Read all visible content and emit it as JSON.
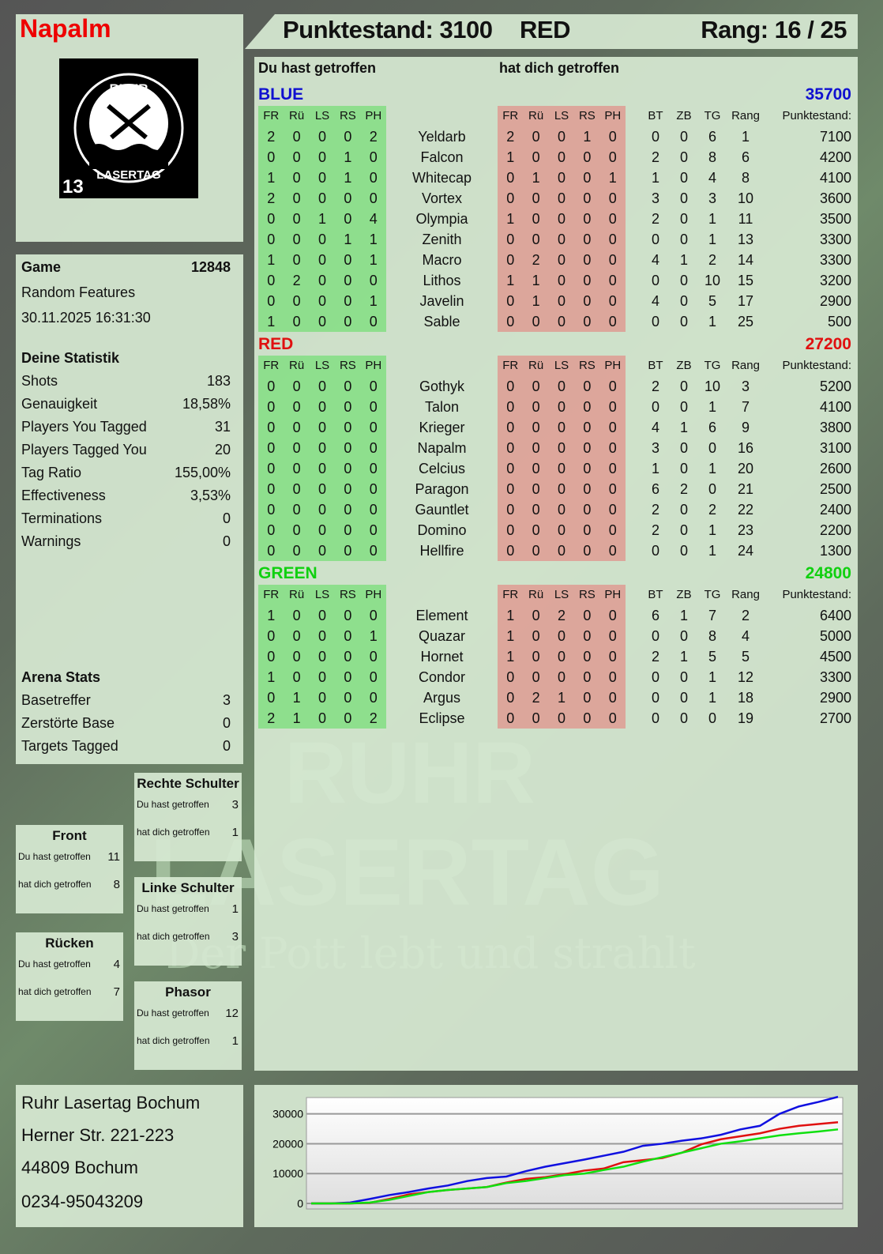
{
  "header": {
    "player_name": "Napalm",
    "score_label": "Punktestand: 3100",
    "team": "RED",
    "rank_label": "Rang: 16 / 25"
  },
  "logo": {
    "text_top": "RUHR",
    "text_bottom": "LASERTAG",
    "badge": "13"
  },
  "watermark": {
    "line1": "RUHR",
    "line2": "LASERTAG",
    "slogan": "Der Pott lebt und strahlt"
  },
  "game": {
    "label": "Game",
    "id": "12848",
    "mode": "Random Features",
    "datetime": "30.11.2025 16:31:30"
  },
  "stats": {
    "title": "Deine Statistik",
    "items": [
      {
        "label": "Shots",
        "value": "183"
      },
      {
        "label": "Genauigkeit",
        "value": "18,58%"
      },
      {
        "label": "Players You Tagged",
        "value": "31"
      },
      {
        "label": "Players Tagged You",
        "value": "20"
      },
      {
        "label": "Tag Ratio",
        "value": "155,00%"
      },
      {
        "label": "Effectiveness",
        "value": "3,53%"
      },
      {
        "label": "Terminations",
        "value": "0"
      },
      {
        "label": "Warnings",
        "value": "0"
      }
    ]
  },
  "arena": {
    "title": "Arena Stats",
    "items": [
      {
        "label": "Basetreffer",
        "value": "3"
      },
      {
        "label": "Zerstörte Base",
        "value": "0"
      },
      {
        "label": "Targets Tagged",
        "value": "0"
      }
    ]
  },
  "zones": [
    {
      "title": "Front",
      "hit_label": "Du hast getroffen",
      "hit": "11",
      "got_label": "hat dich getroffen",
      "got": "8"
    },
    {
      "title": "Rücken",
      "hit_label": "Du hast getroffen",
      "hit": "4",
      "got_label": "hat dich getroffen",
      "got": "7"
    },
    {
      "title": "Rechte Schulter",
      "hit_label": "Du hast getroffen",
      "hit": "3",
      "got_label": "hat dich getroffen",
      "got": "1"
    },
    {
      "title": "Linke Schulter",
      "hit_label": "Du hast getroffen",
      "hit": "1",
      "got_label": "hat dich getroffen",
      "got": "3"
    },
    {
      "title": "Phasor",
      "hit_label": "Du hast getroffen",
      "hit": "12",
      "got_label": "hat dich getroffen",
      "got": "1"
    }
  ],
  "main": {
    "you_hit": "Du hast getroffen",
    "hit_you": "hat dich getroffen",
    "cols_hit": [
      "FR",
      "Rü",
      "LS",
      "RS",
      "PH"
    ],
    "cols_stats": [
      "BT",
      "ZB",
      "TG",
      "Rang",
      "Punktestand:"
    ],
    "teams": [
      {
        "name": "BLUE",
        "score": "35700",
        "color": "#1010d0",
        "players": [
          [
            "Yeldarb",
            [
              2,
              0,
              0,
              0,
              2
            ],
            [
              2,
              0,
              0,
              1,
              0
            ],
            [
              0,
              0,
              6,
              1,
              7100
            ]
          ],
          [
            "Falcon",
            [
              0,
              0,
              0,
              1,
              0
            ],
            [
              1,
              0,
              0,
              0,
              0
            ],
            [
              2,
              0,
              8,
              6,
              4200
            ]
          ],
          [
            "Whitecap",
            [
              1,
              0,
              0,
              1,
              0
            ],
            [
              0,
              1,
              0,
              0,
              1
            ],
            [
              1,
              0,
              4,
              8,
              4100
            ]
          ],
          [
            "Vortex",
            [
              2,
              0,
              0,
              0,
              0
            ],
            [
              0,
              0,
              0,
              0,
              0
            ],
            [
              3,
              0,
              3,
              10,
              3600
            ]
          ],
          [
            "Olympia",
            [
              0,
              0,
              1,
              0,
              4
            ],
            [
              1,
              0,
              0,
              0,
              0
            ],
            [
              2,
              0,
              1,
              11,
              3500
            ]
          ],
          [
            "Zenith",
            [
              0,
              0,
              0,
              1,
              1
            ],
            [
              0,
              0,
              0,
              0,
              0
            ],
            [
              0,
              0,
              1,
              13,
              3300
            ]
          ],
          [
            "Macro",
            [
              1,
              0,
              0,
              0,
              1
            ],
            [
              0,
              2,
              0,
              0,
              0
            ],
            [
              4,
              1,
              2,
              14,
              3300
            ]
          ],
          [
            "Lithos",
            [
              0,
              2,
              0,
              0,
              0
            ],
            [
              1,
              1,
              0,
              0,
              0
            ],
            [
              0,
              0,
              10,
              15,
              3200
            ]
          ],
          [
            "Javelin",
            [
              0,
              0,
              0,
              0,
              1
            ],
            [
              0,
              1,
              0,
              0,
              0
            ],
            [
              4,
              0,
              5,
              17,
              2900
            ]
          ],
          [
            "Sable",
            [
              1,
              0,
              0,
              0,
              0
            ],
            [
              0,
              0,
              0,
              0,
              0
            ],
            [
              0,
              0,
              1,
              25,
              500
            ]
          ]
        ]
      },
      {
        "name": "RED",
        "score": "27200",
        "color": "#e01010",
        "players": [
          [
            "Gothyk",
            [
              0,
              0,
              0,
              0,
              0
            ],
            [
              0,
              0,
              0,
              0,
              0
            ],
            [
              2,
              0,
              10,
              3,
              5200
            ]
          ],
          [
            "Talon",
            [
              0,
              0,
              0,
              0,
              0
            ],
            [
              0,
              0,
              0,
              0,
              0
            ],
            [
              0,
              0,
              1,
              7,
              4100
            ]
          ],
          [
            "Krieger",
            [
              0,
              0,
              0,
              0,
              0
            ],
            [
              0,
              0,
              0,
              0,
              0
            ],
            [
              4,
              1,
              6,
              9,
              3800
            ]
          ],
          [
            "Napalm",
            [
              0,
              0,
              0,
              0,
              0
            ],
            [
              0,
              0,
              0,
              0,
              0
            ],
            [
              3,
              0,
              0,
              16,
              3100
            ]
          ],
          [
            "Celcius",
            [
              0,
              0,
              0,
              0,
              0
            ],
            [
              0,
              0,
              0,
              0,
              0
            ],
            [
              1,
              0,
              1,
              20,
              2600
            ]
          ],
          [
            "Paragon",
            [
              0,
              0,
              0,
              0,
              0
            ],
            [
              0,
              0,
              0,
              0,
              0
            ],
            [
              6,
              2,
              0,
              21,
              2500
            ]
          ],
          [
            "Gauntlet",
            [
              0,
              0,
              0,
              0,
              0
            ],
            [
              0,
              0,
              0,
              0,
              0
            ],
            [
              2,
              0,
              2,
              22,
              2400
            ]
          ],
          [
            "Domino",
            [
              0,
              0,
              0,
              0,
              0
            ],
            [
              0,
              0,
              0,
              0,
              0
            ],
            [
              2,
              0,
              1,
              23,
              2200
            ]
          ],
          [
            "Hellfire",
            [
              0,
              0,
              0,
              0,
              0
            ],
            [
              0,
              0,
              0,
              0,
              0
            ],
            [
              0,
              0,
              1,
              24,
              1300
            ]
          ]
        ]
      },
      {
        "name": "GREEN",
        "score": "24800",
        "color": "#10d010",
        "players": [
          [
            "Element",
            [
              1,
              0,
              0,
              0,
              0
            ],
            [
              1,
              0,
              2,
              0,
              0
            ],
            [
              6,
              1,
              7,
              2,
              6400
            ]
          ],
          [
            "Quazar",
            [
              0,
              0,
              0,
              0,
              1
            ],
            [
              1,
              0,
              0,
              0,
              0
            ],
            [
              0,
              0,
              8,
              4,
              5000
            ]
          ],
          [
            "Hornet",
            [
              0,
              0,
              0,
              0,
              0
            ],
            [
              1,
              0,
              0,
              0,
              0
            ],
            [
              2,
              1,
              5,
              5,
              4500
            ]
          ],
          [
            "Condor",
            [
              1,
              0,
              0,
              0,
              0
            ],
            [
              0,
              0,
              0,
              0,
              0
            ],
            [
              0,
              0,
              1,
              12,
              3300
            ]
          ],
          [
            "Argus",
            [
              0,
              1,
              0,
              0,
              0
            ],
            [
              0,
              2,
              1,
              0,
              0
            ],
            [
              0,
              0,
              1,
              18,
              2900
            ]
          ],
          [
            "Eclipse",
            [
              2,
              1,
              0,
              0,
              2
            ],
            [
              0,
              0,
              0,
              0,
              0
            ],
            [
              0,
              0,
              0,
              19,
              2700
            ]
          ]
        ]
      }
    ]
  },
  "address": {
    "lines": [
      "Ruhr Lasertag Bochum",
      "Herner Str. 221-223",
      "44809 Bochum",
      "0234-95043209"
    ]
  },
  "chart_data": {
    "type": "line",
    "ylim": [
      0,
      36000
    ],
    "yticks": [
      "0",
      "10000",
      "20000",
      "30000"
    ],
    "grid": true,
    "series": [
      {
        "color": "#1010e0",
        "values": [
          0,
          0,
          300,
          1500,
          2800,
          3800,
          5000,
          6000,
          7500,
          8500,
          9000,
          10800,
          12300,
          13500,
          14700,
          16000,
          17300,
          19300,
          20000,
          21000,
          21800,
          23000,
          24800,
          26000,
          30000,
          32500,
          34000,
          35700
        ]
      },
      {
        "color": "#e01010",
        "values": [
          0,
          0,
          0,
          200,
          1500,
          3000,
          3800,
          4500,
          5000,
          5500,
          7000,
          8200,
          8800,
          9800,
          11000,
          11700,
          13800,
          14500,
          15200,
          17000,
          19800,
          21500,
          22500,
          23500,
          25000,
          26000,
          26600,
          27200
        ]
      },
      {
        "color": "#10e010",
        "values": [
          0,
          0,
          0,
          300,
          1200,
          2500,
          3800,
          4500,
          5000,
          5500,
          6800,
          7500,
          8500,
          9500,
          10000,
          11200,
          12300,
          14000,
          15500,
          17000,
          18500,
          20000,
          20800,
          21800,
          22800,
          23500,
          24100,
          24800
        ]
      }
    ]
  }
}
